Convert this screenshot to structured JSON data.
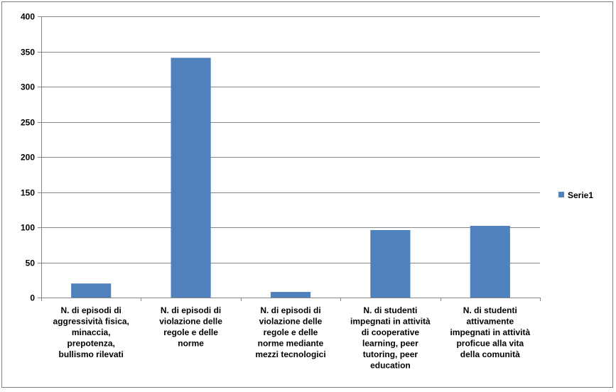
{
  "chart_data": {
    "type": "bar",
    "title": "",
    "xlabel": "",
    "ylabel": "",
    "ylim": [
      0,
      400
    ],
    "yticks": [
      0,
      50,
      100,
      150,
      200,
      250,
      300,
      350,
      400
    ],
    "grid": true,
    "legend_position": "right",
    "categories": [
      [
        "N. di episodi di",
        "aggressività fisica,",
        "minaccia,",
        "prepotenza,",
        "bullismo rilevati"
      ],
      [
        "N. di episodi di",
        "violazione delle",
        "regole e delle",
        "norme"
      ],
      [
        "N. di episodi di",
        "violazione delle",
        "regole e delle",
        "norme mediante",
        "mezzi tecnologici"
      ],
      [
        "N. di studenti",
        "impegnati in attività",
        "di cooperative",
        "learning, peer",
        "tutoring, peer",
        "education"
      ],
      [
        "N. di studenti",
        "attivamente",
        "impegnati in attività",
        "proficue alla vita",
        "della comunità"
      ]
    ],
    "series": [
      {
        "name": "Serie1",
        "color": "#4f81bd",
        "values": [
          20,
          341,
          8,
          96,
          102
        ]
      }
    ]
  }
}
